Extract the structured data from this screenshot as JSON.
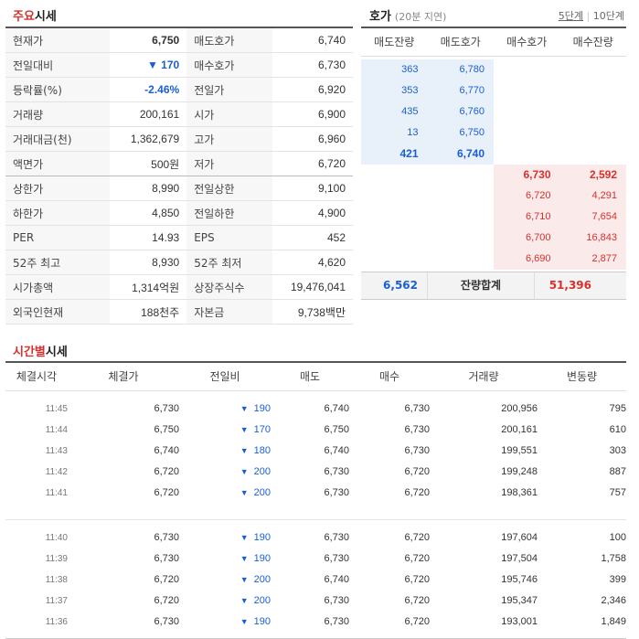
{
  "quote_section": {
    "title_hl": "주요",
    "title_rest": "시세",
    "rows": [
      {
        "l1": "현재가",
        "v1": "6,750",
        "l2": "매도호가",
        "v2": "6,740",
        "bold1": true
      },
      {
        "l1": "전일대비",
        "v1": "▼ 170",
        "l2": "매수호가",
        "v2": "6,730",
        "blue1": true
      },
      {
        "l1": "등락률(%)",
        "v1": "-2.46%",
        "l2": "전일가",
        "v2": "6,920",
        "blue1": true
      },
      {
        "l1": "거래량",
        "v1": "200,161",
        "l2": "시가",
        "v2": "6,900"
      },
      {
        "l1": "거래대금(천)",
        "v1": "1,362,679",
        "l2": "고가",
        "v2": "6,960"
      },
      {
        "l1": "액면가",
        "v1": "500원",
        "l2": "저가",
        "v2": "6,720",
        "sep": true
      },
      {
        "l1": "상한가",
        "v1": "8,990",
        "l2": "전일상한",
        "v2": "9,100"
      },
      {
        "l1": "하한가",
        "v1": "4,850",
        "l2": "전일하한",
        "v2": "4,900"
      },
      {
        "l1": "PER",
        "v1": "14.93",
        "l2": "EPS",
        "v2": "452"
      },
      {
        "l1": "52주 최고",
        "v1": "8,930",
        "l2": "52주 최저",
        "v2": "4,620"
      },
      {
        "l1": "시가총액",
        "v1": "1,314억원",
        "l2": "상장주식수",
        "v2": "19,476,041"
      },
      {
        "l1": "외국인현재",
        "v1": "188천주",
        "l2": "자본금",
        "v2": "9,738백만"
      }
    ]
  },
  "orderbook": {
    "title": "호가",
    "subtitle": "(20분 지연)",
    "tab_5": "5단계",
    "tab_sep": "|",
    "tab_10": "10단계",
    "headers": [
      "매도잔량",
      "매도호가",
      "매수호가",
      "매수잔량"
    ],
    "asks": [
      {
        "qty": "363",
        "price": "6,780"
      },
      {
        "qty": "353",
        "price": "6,770"
      },
      {
        "qty": "435",
        "price": "6,760"
      },
      {
        "qty": "13",
        "price": "6,750"
      },
      {
        "qty": "421",
        "price": "6,740",
        "bold": true
      }
    ],
    "bids": [
      {
        "price": "6,730",
        "qty": "2,592",
        "bold": true
      },
      {
        "price": "6,720",
        "qty": "4,291"
      },
      {
        "price": "6,710",
        "qty": "7,654"
      },
      {
        "price": "6,700",
        "qty": "16,843"
      },
      {
        "price": "6,690",
        "qty": "2,877"
      }
    ],
    "sum_ask": "6,562",
    "sum_label": "잔량합계",
    "sum_bid": "51,396"
  },
  "time_section": {
    "title_hl": "시간별",
    "title_rest": "시세",
    "headers": [
      "체결시각",
      "체결가",
      "전일비",
      "매도",
      "매수",
      "거래량",
      "변동량"
    ],
    "group1": [
      {
        "time": "11:45",
        "price": "6,730",
        "diff": "190",
        "sell": "6,740",
        "buy": "6,730",
        "vol": "200,956",
        "chg": "795"
      },
      {
        "time": "11:44",
        "price": "6,750",
        "diff": "170",
        "sell": "6,750",
        "buy": "6,730",
        "vol": "200,161",
        "chg": "610"
      },
      {
        "time": "11:43",
        "price": "6,740",
        "diff": "180",
        "sell": "6,740",
        "buy": "6,730",
        "vol": "199,551",
        "chg": "303"
      },
      {
        "time": "11:42",
        "price": "6,720",
        "diff": "200",
        "sell": "6,730",
        "buy": "6,720",
        "vol": "199,248",
        "chg": "887"
      },
      {
        "time": "11:41",
        "price": "6,720",
        "diff": "200",
        "sell": "6,730",
        "buy": "6,720",
        "vol": "198,361",
        "chg": "757"
      }
    ],
    "group2": [
      {
        "time": "11:40",
        "price": "6,730",
        "diff": "190",
        "sell": "6,730",
        "buy": "6,720",
        "vol": "197,604",
        "chg": "100"
      },
      {
        "time": "11:39",
        "price": "6,730",
        "diff": "190",
        "sell": "6,730",
        "buy": "6,720",
        "vol": "197,504",
        "chg": "1,758"
      },
      {
        "time": "11:38",
        "price": "6,720",
        "diff": "200",
        "sell": "6,740",
        "buy": "6,720",
        "vol": "195,746",
        "chg": "399"
      },
      {
        "time": "11:37",
        "price": "6,720",
        "diff": "200",
        "sell": "6,730",
        "buy": "6,720",
        "vol": "195,347",
        "chg": "2,346"
      },
      {
        "time": "11:36",
        "price": "6,730",
        "diff": "190",
        "sell": "6,730",
        "buy": "6,720",
        "vol": "193,001",
        "chg": "1,849"
      }
    ],
    "down_arrow": "▼"
  },
  "colors": {
    "up": "#d9302b",
    "down": "#1a5fd1",
    "ask_bg": "#e8f0fa",
    "bid_bg": "#fbeaea"
  }
}
